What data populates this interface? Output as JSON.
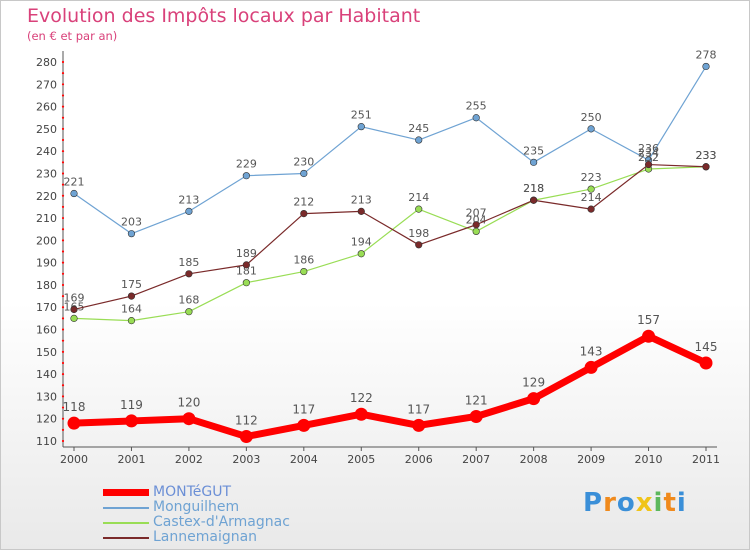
{
  "chart_data": {
    "type": "line",
    "title": "Evolution des Impôts locaux par Habitant",
    "subtitle": "(en € et par an)",
    "xlabel": "",
    "ylabel": "",
    "x": [
      "2000",
      "2001",
      "2002",
      "2003",
      "2004",
      "2005",
      "2006",
      "2007",
      "2008",
      "2009",
      "2010",
      "2011"
    ],
    "ylim": [
      110,
      280
    ],
    "yticks": [
      110,
      120,
      130,
      140,
      150,
      160,
      170,
      180,
      190,
      200,
      210,
      220,
      230,
      240,
      250,
      260,
      270,
      280
    ],
    "grid": false,
    "legend_position": "bottom-left",
    "series": [
      {
        "name": "MONTéGUT",
        "color": "#ff0000",
        "values": [
          118,
          119,
          120,
          112,
          117,
          122,
          117,
          121,
          129,
          143,
          157,
          145
        ]
      },
      {
        "name": "Monguilhem",
        "color": "#6fa3d3",
        "values": [
          221,
          203,
          213,
          229,
          230,
          251,
          245,
          255,
          235,
          250,
          236,
          278
        ]
      },
      {
        "name": "Castex-d'Armagnac",
        "color": "#99dd55",
        "values": [
          165,
          164,
          168,
          181,
          186,
          194,
          214,
          204,
          218,
          223,
          232,
          233
        ]
      },
      {
        "name": "Lannemaignan",
        "color": "#7a2a2a",
        "values": [
          169,
          175,
          185,
          189,
          212,
          213,
          198,
          207,
          218,
          214,
          234,
          233
        ]
      }
    ]
  },
  "brand": {
    "letters": [
      "P",
      "r",
      "o",
      "x",
      "i",
      "t",
      "i"
    ],
    "colors": [
      "#3a8fd8",
      "#f08a1c",
      "#3a8fd8",
      "#f0c419",
      "#5cb85c",
      "#f08a1c",
      "#3a8fd8"
    ]
  }
}
